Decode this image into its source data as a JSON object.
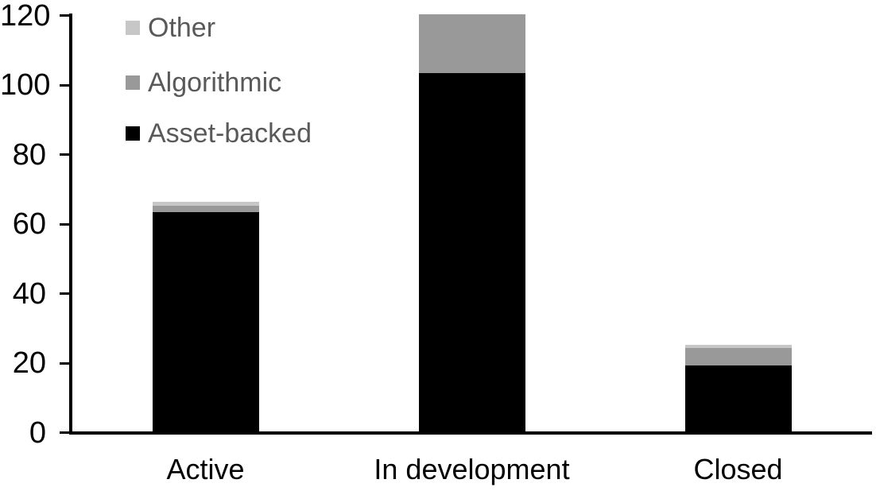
{
  "chart_data": {
    "type": "bar",
    "stacked": true,
    "title": "",
    "xlabel": "",
    "ylabel": "",
    "categories": [
      "Active",
      "In development",
      "Closed"
    ],
    "series": [
      {
        "name": "Asset-backed",
        "color": "#000000",
        "values": [
          63,
          103,
          19
        ]
      },
      {
        "name": "Algorithmic",
        "color": "#999999",
        "values": [
          2,
          17,
          5
        ]
      },
      {
        "name": "Other",
        "color": "#c7c7c7",
        "values": [
          1,
          0,
          1
        ]
      }
    ],
    "totals": [
      66,
      120,
      25
    ],
    "y_ticks": [
      0,
      20,
      40,
      60,
      80,
      100,
      120
    ],
    "ylim": [
      0,
      120
    ],
    "grid": false,
    "legend_position": "top-left",
    "legend_order": [
      "Other",
      "Algorithmic",
      "Asset-backed"
    ]
  },
  "legend": {
    "items": [
      {
        "label": "Other",
        "color": "#c7c7c7"
      },
      {
        "label": "Algorithmic",
        "color": "#999999"
      },
      {
        "label": "Asset-backed",
        "color": "#000000"
      }
    ],
    "text_color": "#595959"
  },
  "axes": {
    "y_tick_labels": [
      "0",
      "20",
      "40",
      "60",
      "80",
      "100",
      "120"
    ],
    "x_labels": [
      "Active",
      "In development",
      "Closed"
    ],
    "axis_color": "#000000"
  }
}
